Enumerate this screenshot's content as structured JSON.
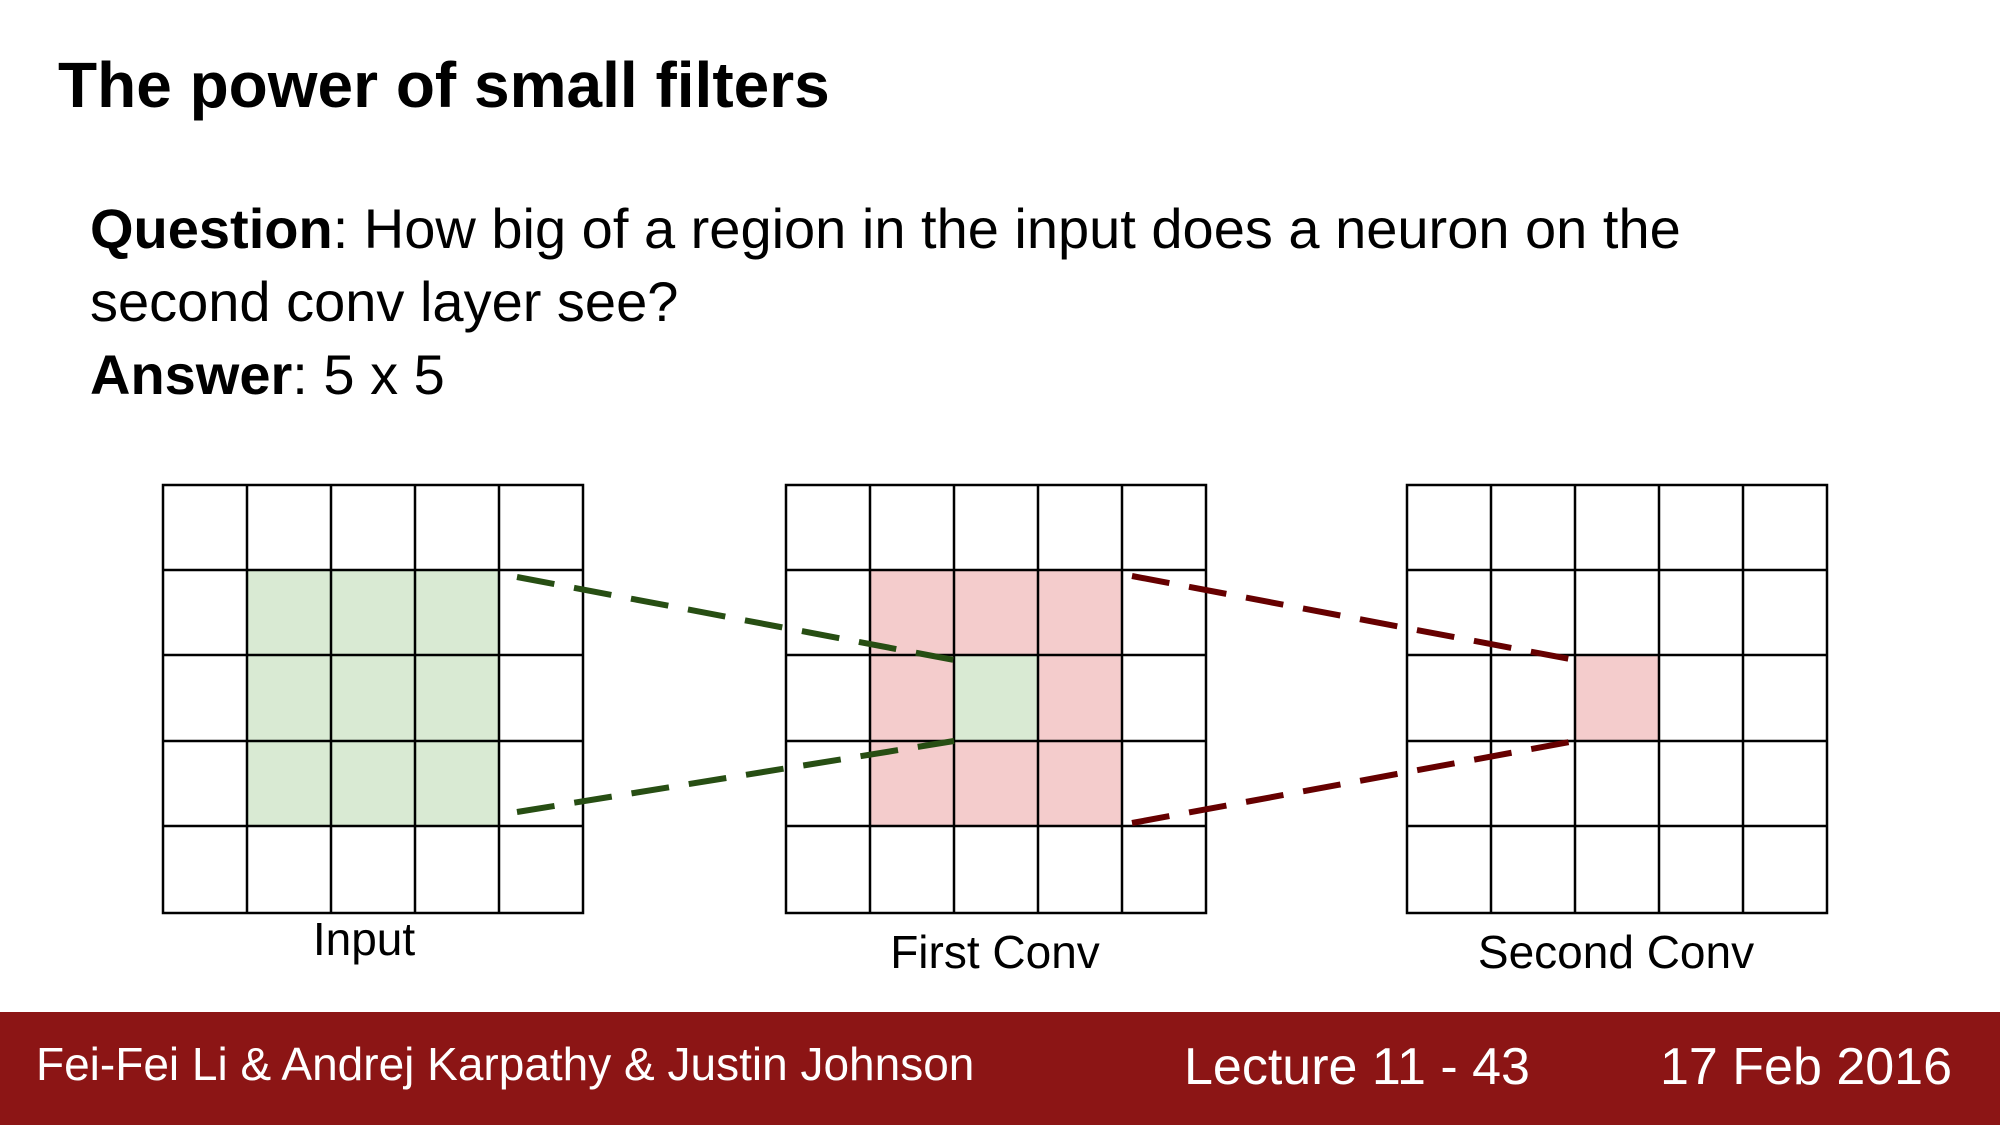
{
  "slide": {
    "title": "The power of small filters",
    "question_label": "Question",
    "question_text": ": How big of a region in the input does a neuron on the",
    "question_text_2": "second conv layer see?",
    "answer_label": "Answer",
    "answer_text": ": 5 x 5"
  },
  "diagram": {
    "grids": [
      {
        "label": "Input",
        "rows": 5,
        "cols": 5,
        "highlight": [
          [
            1,
            1
          ],
          [
            1,
            2
          ],
          [
            1,
            3
          ],
          [
            2,
            1
          ],
          [
            2,
            2
          ],
          [
            2,
            3
          ],
          [
            3,
            1
          ],
          [
            3,
            2
          ],
          [
            3,
            3
          ]
        ],
        "highlight_color": "#d9ead3"
      },
      {
        "label": "First Conv",
        "rows": 5,
        "cols": 5,
        "highlight": [
          [
            1,
            1
          ],
          [
            1,
            2
          ],
          [
            1,
            3
          ],
          [
            2,
            1
          ],
          [
            2,
            3
          ],
          [
            3,
            1
          ],
          [
            3,
            2
          ],
          [
            3,
            3
          ]
        ],
        "highlight_color": "#f4cccc",
        "center_color": "#d9ead3",
        "center": [
          2,
          2
        ]
      },
      {
        "label": "Second Conv",
        "rows": 5,
        "cols": 5,
        "highlight": [
          [
            2,
            2
          ]
        ],
        "highlight_color": "#f4cccc"
      }
    ],
    "connector_colors": {
      "first": "#274e13",
      "second": "#660000"
    }
  },
  "footer": {
    "authors": "Fei-Fei Li & Andrej Karpathy & Justin Johnson",
    "lecture": "Lecture 11 - 43",
    "date": "17 Feb 2016",
    "background": "#8c1515"
  }
}
